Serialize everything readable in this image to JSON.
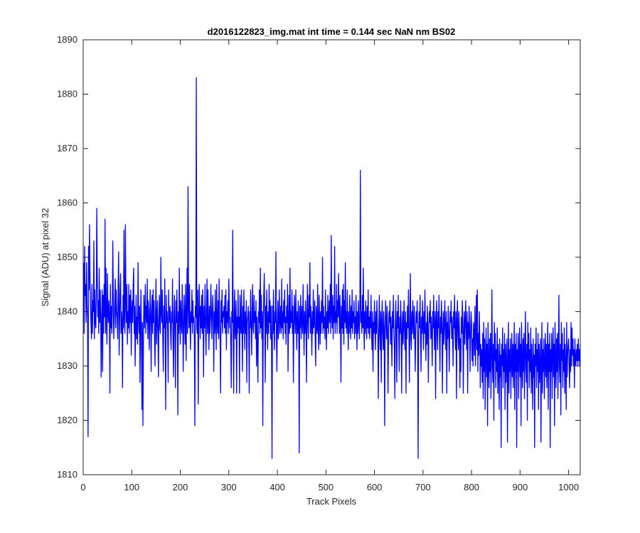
{
  "chart_data": {
    "type": "line",
    "title": "d2016122823_img.mat int time = 0.144 sec  NaN nm BS02",
    "xlabel": "Track Pixels",
    "ylabel": "Signal (ADU) at pixel 32",
    "xlim": [
      0,
      1024
    ],
    "ylim": [
      1810,
      1890
    ],
    "xticks": [
      0,
      100,
      200,
      300,
      400,
      500,
      600,
      700,
      800,
      900,
      1000
    ],
    "yticks": [
      1810,
      1820,
      1830,
      1840,
      1850,
      1860,
      1870,
      1880,
      1890
    ],
    "grid": false,
    "line_color": "#0000ff",
    "series": [
      {
        "x_start": 1,
        "x_step": 1,
        "values": [
          1849,
          1836,
          1852,
          1843,
          1845,
          1838,
          1849,
          1841,
          1839,
          1817,
          1852,
          1844,
          1856,
          1847,
          1841,
          1838,
          1835,
          1845,
          1836,
          1842,
          1840,
          1853,
          1835,
          1844,
          1838,
          1837,
          1843,
          1859,
          1846,
          1839,
          1842,
          1836,
          1848,
          1838,
          1844,
          1840,
          1828,
          1837,
          1844,
          1829,
          1843,
          1836,
          1845,
          1839,
          1857,
          1836,
          1848,
          1838,
          1834,
          1847,
          1840,
          1838,
          1842,
          1839,
          1825,
          1845,
          1837,
          1841,
          1836,
          1840,
          1853,
          1843,
          1835,
          1838,
          1842,
          1846,
          1837,
          1844,
          1840,
          1839,
          1835,
          1845,
          1851,
          1832,
          1838,
          1844,
          1847,
          1836,
          1840,
          1838,
          1826,
          1843,
          1837,
          1855,
          1839,
          1836,
          1856,
          1842,
          1838,
          1845,
          1834,
          1840,
          1837,
          1845,
          1836,
          1843,
          1838,
          1844,
          1832,
          1840,
          1842,
          1838,
          1845,
          1848,
          1836,
          1841,
          1830,
          1837,
          1843,
          1835,
          1839,
          1834,
          1849,
          1840,
          1836,
          1841,
          1827,
          1838,
          1844,
          1835,
          1822,
          1838,
          1819,
          1833,
          1843,
          1837,
          1840,
          1845,
          1836,
          1841,
          1838,
          1846,
          1835,
          1842,
          1840,
          1833,
          1838,
          1844,
          1839,
          1829,
          1840,
          1843,
          1836,
          1844,
          1838,
          1842,
          1835,
          1830,
          1840,
          1846,
          1834,
          1838,
          1842,
          1836,
          1828,
          1839,
          1843,
          1837,
          1836,
          1850,
          1840,
          1838,
          1844,
          1835,
          1829,
          1841,
          1837,
          1846,
          1835,
          1822,
          1843,
          1838,
          1840,
          1836,
          1827,
          1844,
          1838,
          1839,
          1841,
          1836,
          1833,
          1840,
          1838,
          1846,
          1835,
          1828,
          1839,
          1843,
          1836,
          1826,
          1842,
          1838,
          1844,
          1837,
          1821,
          1840,
          1836,
          1848,
          1839,
          1834,
          1842,
          1838,
          1836,
          1845,
          1840,
          1829,
          1837,
          1843,
          1838,
          1834,
          1845,
          1831,
          1839,
          1848,
          1836,
          1863,
          1841,
          1837,
          1845,
          1838,
          1833,
          1840,
          1838,
          1844,
          1836,
          1842,
          1838,
          1839,
          1835,
          1819,
          1841,
          1839,
          1883,
          1837,
          1836,
          1844,
          1823,
          1838,
          1845,
          1840,
          1835,
          1841,
          1837,
          1843,
          1836,
          1844,
          1839,
          1828,
          1841,
          1837,
          1845,
          1838,
          1832,
          1840,
          1846,
          1836,
          1844,
          1838,
          1833,
          1841,
          1836,
          1839,
          1845,
          1840,
          1835,
          1840,
          1843,
          1838,
          1829,
          1840,
          1836,
          1844,
          1838,
          1833,
          1845,
          1838,
          1836,
          1842,
          1835,
          1846,
          1839,
          1835,
          1825,
          1842,
          1838,
          1844,
          1836,
          1840,
          1839,
          1841,
          1837,
          1843,
          1836,
          1844,
          1833,
          1840,
          1838,
          1842,
          1836,
          1846,
          1841,
          1837,
          1839,
          1834,
          1826,
          1840,
          1838,
          1855,
          1836,
          1825,
          1840,
          1844,
          1835,
          1838,
          1842,
          1825,
          1839,
          1836,
          1844,
          1837
        ]
      },
      {
        "x_start": 321,
        "x_step": 1,
        "values": [
          1839,
          1825,
          1843,
          1838,
          1836,
          1844,
          1837,
          1829,
          1841,
          1836,
          1844,
          1838,
          1833,
          1840,
          1836,
          1842,
          1827,
          1838,
          1839,
          1841,
          1836,
          1825,
          1840,
          1837,
          1844,
          1838,
          1832,
          1839,
          1845,
          1837,
          1836,
          1843,
          1838,
          1840,
          1835,
          1842,
          1830,
          1839,
          1834,
          1827,
          1840,
          1838,
          1844,
          1836,
          1848,
          1837,
          1843,
          1835,
          1840,
          1819,
          1838,
          1843,
          1847,
          1839,
          1827,
          1841,
          1836,
          1844,
          1838,
          1833,
          1840,
          1836,
          1845,
          1838,
          1842,
          1835,
          1841,
          1834,
          1813,
          1841,
          1836,
          1844,
          1837,
          1833,
          1840,
          1838,
          1851,
          1836,
          1829,
          1838,
          1842,
          1835,
          1839,
          1844,
          1836,
          1838,
          1841,
          1836,
          1846,
          1837,
          1840,
          1835,
          1842,
          1838,
          1844,
          1836,
          1839,
          1834,
          1841,
          1838,
          1845,
          1829,
          1838,
          1843,
          1836,
          1848,
          1837,
          1840,
          1838,
          1844,
          1836,
          1841,
          1827,
          1837,
          1843,
          1839,
          1836,
          1844,
          1838,
          1833,
          1840,
          1836,
          1842,
          1838,
          1814,
          1841,
          1837,
          1843,
          1835,
          1839,
          1841,
          1836,
          1845,
          1838,
          1832,
          1840,
          1836,
          1842,
          1838,
          1827,
          1840,
          1845,
          1837,
          1835,
          1843,
          1839,
          1849,
          1836,
          1841,
          1838,
          1832,
          1840,
          1836,
          1844,
          1837,
          1838,
          1842,
          1835,
          1830,
          1841,
          1838,
          1836,
          1845,
          1837,
          1833,
          1843,
          1839,
          1834,
          1840,
          1836,
          1842,
          1838,
          1850,
          1836,
          1841,
          1837,
          1839,
          1835,
          1844,
          1838,
          1833,
          1840,
          1837,
          1843,
          1836,
          1839,
          1842,
          1838,
          1845,
          1836,
          1854,
          1840,
          1837,
          1843,
          1835,
          1841,
          1838,
          1852,
          1836,
          1840
        ]
      },
      {
        "x_start": 521,
        "x_step": 1,
        "values": [
          1838,
          1845,
          1836,
          1842,
          1839,
          1847,
          1840,
          1836,
          1843,
          1838,
          1827,
          1841,
          1837,
          1844,
          1836,
          1845,
          1834,
          1842,
          1838,
          1849,
          1837,
          1840,
          1836,
          1844,
          1838,
          1833,
          1840,
          1836,
          1843,
          1838,
          1835,
          1841,
          1837,
          1844,
          1836,
          1840,
          1838,
          1842,
          1835,
          1839,
          1836,
          1843,
          1838,
          1833,
          1840,
          1836,
          1842,
          1838,
          1835,
          1841,
          1866,
          1838,
          1840,
          1836,
          1843,
          1837,
          1848,
          1838,
          1833,
          1840,
          1836,
          1842,
          1838,
          1835,
          1841,
          1837,
          1844,
          1836,
          1839,
          1835,
          1840,
          1837,
          1843,
          1836,
          1833,
          1840,
          1829,
          1838,
          1836,
          1842,
          1837,
          1833,
          1840,
          1836,
          1842,
          1838,
          1835,
          1824,
          1837,
          1843,
          1836,
          1833,
          1840,
          1827,
          1838,
          1842,
          1836,
          1833,
          1840,
          1837,
          1819,
          1836,
          1842,
          1838,
          1835,
          1841,
          1837,
          1825,
          1836,
          1840,
          1838,
          1842,
          1834,
          1839,
          1836,
          1830,
          1840,
          1837,
          1843,
          1836
        ]
      },
      {
        "x_start": 641,
        "x_step": 1,
        "values": [
          1833,
          1824,
          1838,
          1842,
          1836,
          1827,
          1840,
          1837,
          1843,
          1835,
          1829,
          1839,
          1836,
          1842,
          1838,
          1825,
          1836,
          1840,
          1834,
          1838,
          1842,
          1836,
          1833,
          1840,
          1825,
          1838,
          1835,
          1841,
          1837,
          1844,
          1836,
          1827,
          1839,
          1847,
          1835,
          1833,
          1840,
          1836,
          1842,
          1838,
          1835,
          1841,
          1837,
          1829,
          1836,
          1840,
          1838,
          1842,
          1835,
          1813,
          1836,
          1840,
          1837,
          1843,
          1835,
          1829,
          1839,
          1836,
          1842,
          1838,
          1833,
          1840,
          1836,
          1844,
          1836,
          1831,
          1838,
          1834,
          1841,
          1837,
          1827,
          1836,
          1840,
          1838,
          1842,
          1835,
          1839,
          1836,
          1830,
          1840,
          1837,
          1843,
          1836,
          1833,
          1840,
          1824,
          1838,
          1842,
          1836,
          1833,
          1840,
          1837,
          1843,
          1835,
          1829,
          1839,
          1836,
          1842,
          1838,
          1825,
          1836,
          1840,
          1834,
          1838,
          1842,
          1836,
          1833,
          1840,
          1825,
          1838,
          1835,
          1841,
          1837,
          1829,
          1836,
          1840,
          1838,
          1842,
          1835,
          1839,
          1836,
          1830,
          1840,
          1837,
          1843,
          1836,
          1833,
          1840,
          1824,
          1838,
          1842,
          1836,
          1833,
          1840,
          1837,
          1826,
          1835,
          1829,
          1839,
          1836,
          1842,
          1838,
          1825,
          1836,
          1840,
          1834,
          1838,
          1842,
          1836,
          1833,
          1840,
          1825,
          1838,
          1835,
          1841,
          1837,
          1829,
          1836,
          1840,
          1838,
          1831,
          1835,
          1830,
          1838,
          1836,
          1832,
          1841,
          1830,
          1836,
          1843,
          1833,
          1844,
          1829,
          1836,
          1832,
          1840,
          1835,
          1826,
          1834,
          1830
        ]
      },
      {
        "x_start": 821,
        "x_step": 1,
        "values": [
          1833,
          1827,
          1836,
          1824,
          1838,
          1829,
          1835,
          1822,
          1832,
          1837,
          1828,
          1834,
          1819,
          1838,
          1831,
          1826,
          1835,
          1829,
          1836,
          1824,
          1832,
          1844,
          1830,
          1827,
          1834,
          1820,
          1838,
          1831,
          1836,
          1826,
          1833,
          1829,
          1837,
          1825,
          1834,
          1830,
          1822,
          1835,
          1828,
          1832,
          1815,
          1834,
          1830,
          1837,
          1826,
          1833,
          1829,
          1836,
          1822,
          1834,
          1827,
          1831,
          1835,
          1816,
          1830,
          1838,
          1825,
          1833,
          1829,
          1835,
          1824,
          1831,
          1836,
          1828,
          1834,
          1826,
          1832,
          1838,
          1822,
          1834,
          1829,
          1836,
          1815,
          1833,
          1829,
          1836,
          1824,
          1832,
          1837,
          1828,
          1834,
          1819,
          1838,
          1831,
          1826,
          1835,
          1829,
          1836,
          1824,
          1832,
          1840,
          1830,
          1827,
          1834,
          1820,
          1838,
          1831,
          1836,
          1826,
          1833,
          1829,
          1837,
          1825,
          1834,
          1830,
          1822,
          1835,
          1828,
          1832,
          1815,
          1834,
          1830,
          1837,
          1826,
          1833,
          1829,
          1836,
          1822,
          1834,
          1827,
          1831,
          1835,
          1816,
          1830,
          1838,
          1825,
          1833,
          1829,
          1835,
          1824,
          1831,
          1836,
          1828,
          1834,
          1826,
          1832,
          1838,
          1822,
          1834,
          1829,
          1836,
          1815,
          1833,
          1829,
          1836,
          1824,
          1832,
          1837,
          1828,
          1834,
          1819,
          1838,
          1831,
          1826,
          1835,
          1829,
          1836,
          1824,
          1832,
          1843,
          1830,
          1827,
          1834,
          1821,
          1838,
          1831,
          1836,
          1826,
          1833,
          1829,
          1837,
          1825,
          1834,
          1830,
          1822,
          1838,
          1828,
          1832,
          1834,
          1835,
          1830,
          1826,
          1833,
          1829,
          1838,
          1830,
          1837,
          1832,
          1835,
          1830,
          1833,
          1826,
          1835,
          1831,
          1830,
          1833,
          1831,
          1834,
          1830,
          1835,
          1831,
          1833,
          1830,
          1834
        ]
      }
    ]
  }
}
